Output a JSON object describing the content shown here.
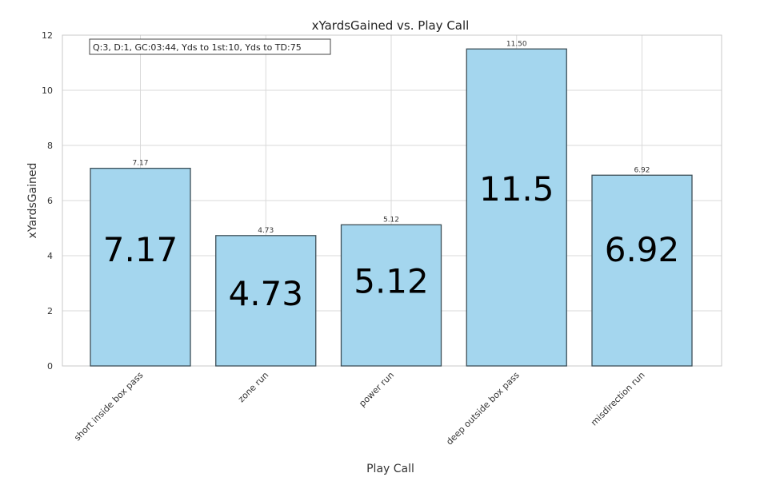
{
  "chart_data": {
    "type": "bar",
    "title": "xYardsGained vs. Play Call",
    "xlabel": "Play Call",
    "ylabel": "xYardsGained",
    "ylim": [
      0,
      12
    ],
    "yticks": [
      0,
      2,
      4,
      6,
      8,
      10,
      12
    ],
    "grid": true,
    "annotation": "Q:3, D:1, GC:03:44, Yds to 1st:10, Yds to TD:75",
    "bar_color": "#a4d6ee",
    "edge_color": "#3d4f57",
    "categories": [
      "short inside box pass",
      "zone run",
      "power run",
      "deep outside box pass",
      "misdirection run"
    ],
    "values": [
      7.17,
      4.73,
      5.12,
      11.5,
      6.92
    ],
    "value_labels": [
      "7.17",
      "4.73",
      "5.12",
      "11.50",
      "6.92"
    ],
    "big_labels": [
      "7.17",
      "4.73",
      "5.12",
      "11.5",
      "6.92"
    ],
    "big_label_values": [
      3.8,
      2.2,
      2.65,
      6.0,
      3.8
    ]
  }
}
